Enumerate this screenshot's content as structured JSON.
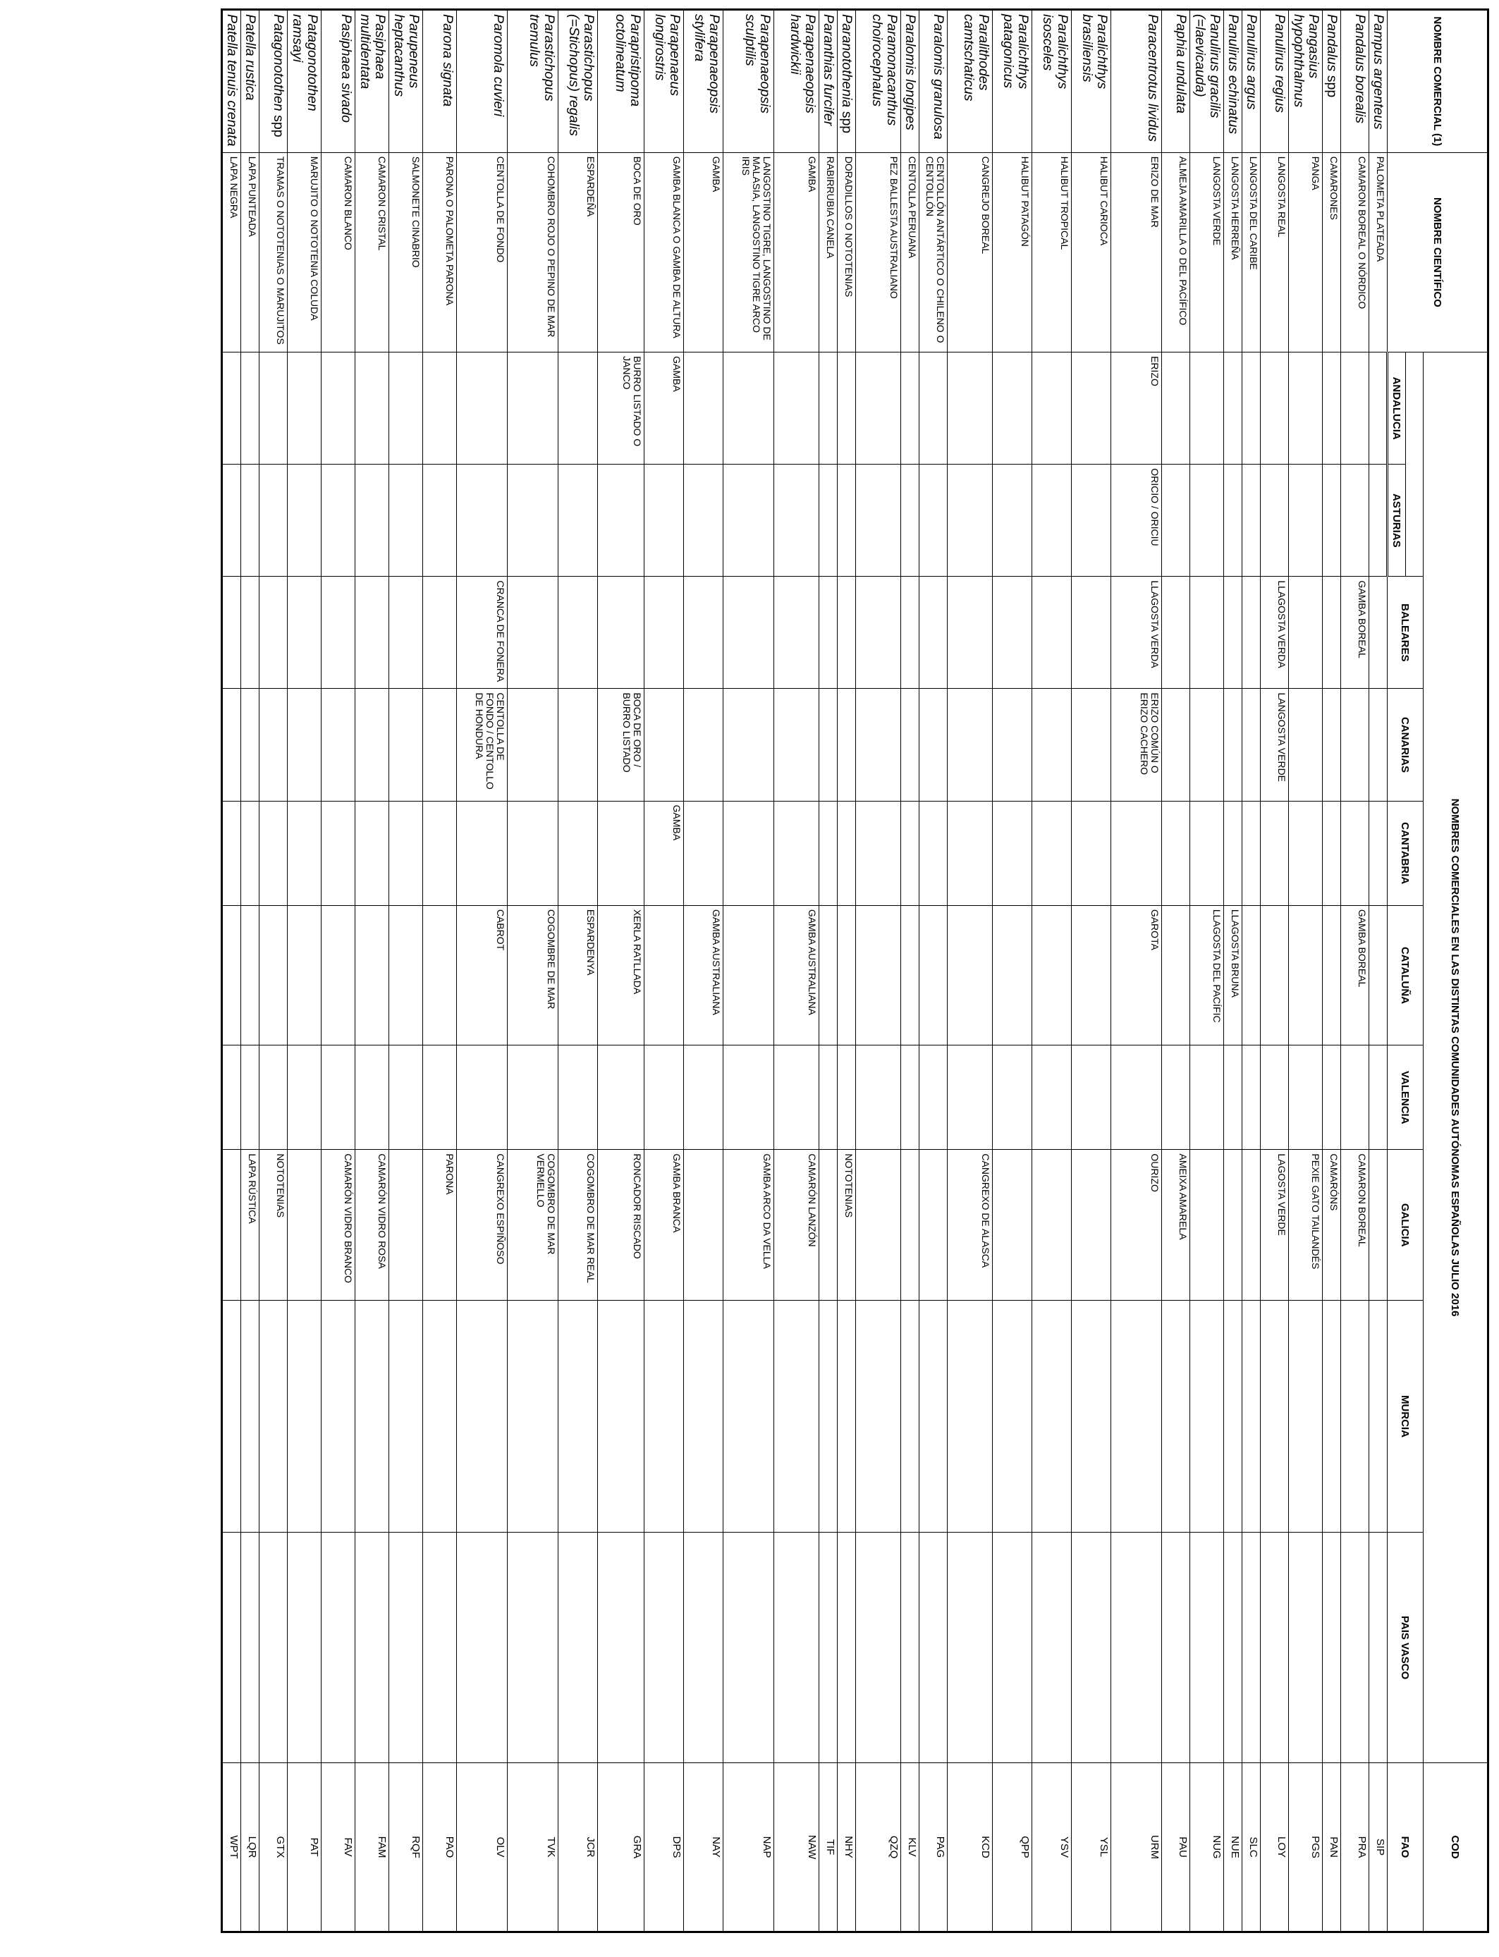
{
  "headers": {
    "nombre_comercial": "NOMBRE COMERCIAL (1)",
    "nombre_cientifico": "NOMBRE CIENTÍFICO",
    "group_title": "NOMBRES COMERCIALES EN LAS DISTINTAS COMUNIDADES AUTÓNOMAS ESPAÑOLAS JULIO 2016",
    "cod": "COD",
    "fao": "FAO",
    "regions": [
      "ANDALUCIA",
      "ASTURIAS",
      "BALEARES",
      "CANARIAS",
      "CANTABRIA",
      "CATALUÑA",
      "VALENCIA",
      "GALICIA",
      "MURCIA",
      "PAIS VASCO"
    ]
  },
  "rows": [
    {
      "sci": "Pampus argenteus",
      "spp": "",
      "com": "PALOMETA PLATEADA",
      "reg": [
        "",
        "",
        "",
        "",
        "",
        "",
        "",
        "",
        "",
        ""
      ],
      "fao": "SIP"
    },
    {
      "sci": "Pandalus borealis",
      "spp": "",
      "com": "CAMARON BOREAL O NÓRDICO",
      "reg": [
        "",
        "",
        "GAMBA BOREAL",
        "",
        "",
        "GAMBA BOREAL",
        "",
        "CAMARON BOREAL",
        "",
        ""
      ],
      "fao": "PRA"
    },
    {
      "sci": "Pandalus",
      "spp": "spp",
      "com": "CAMARONES",
      "reg": [
        "",
        "",
        "",
        "",
        "",
        "",
        "",
        "CAMARÓNS",
        "",
        ""
      ],
      "fao": "PAN"
    },
    {
      "sci": "Pangasius hypophthalmus",
      "spp": "",
      "com": "PANGA",
      "reg": [
        "",
        "",
        "",
        "",
        "",
        "",
        "",
        "PEXIE GATO TAILANDÉS",
        "",
        ""
      ],
      "fao": "PGS"
    },
    {
      "sci": "Panulirus  regius",
      "spp": "",
      "com": "LANGOSTA REAL",
      "reg": [
        "",
        "",
        "LLAGOSTA VERDA",
        "LANGOSTA VERDE",
        "",
        "",
        "",
        "LAGOSTA VERDE",
        "",
        ""
      ],
      "fao": "LOY"
    },
    {
      "sci": "Panulirus argus",
      "spp": "",
      "com": "LANGOSTA DEL CARIBE",
      "reg": [
        "",
        "",
        "",
        "",
        "",
        "",
        "",
        "",
        "",
        ""
      ],
      "fao": "SLC"
    },
    {
      "sci": "Panulirus echinatus",
      "spp": "",
      "com": "LANGOSTA HERREÑA",
      "reg": [
        "",
        "",
        "",
        "",
        "",
        "LLAGOSTA BRUNA",
        "",
        "",
        "",
        ""
      ],
      "fao": "NUE"
    },
    {
      "sci": "Panulirus gracilis (=laevicauda)",
      "spp": "",
      "com": "LANGOSTA VERDE",
      "reg": [
        "",
        "",
        "",
        "",
        "",
        "LLAGOSTA DEL PACÍFIC",
        "",
        "",
        "",
        ""
      ],
      "fao": "NUG"
    },
    {
      "sci": "Paphia undulata",
      "spp": "",
      "com": "ALMEJA AMARILLA O DEL PACÍFICO",
      "reg": [
        "",
        "",
        "",
        "",
        "",
        "",
        "",
        "AMEIXA AMARELA",
        "",
        ""
      ],
      "fao": "PAU"
    },
    {
      "sci": "Paracentrotus lividus",
      "spp": "",
      "com": "ERIZO DE MAR",
      "reg": [
        "ERIZO",
        "ORICIO / ORICIU",
        "LLAGOSTA VERDA",
        "ERIZO COMÚN O ERIZO CACHERO",
        "",
        "GAROTA",
        "",
        "OURIZO",
        "",
        ""
      ],
      "fao": "URM"
    },
    {
      "sci": "Paralichthys brasiliensis",
      "spp": "",
      "com": "HALIBUT CARIOCA",
      "reg": [
        "",
        "",
        "",
        "",
        "",
        "",
        "",
        "",
        "",
        ""
      ],
      "fao": "YSL"
    },
    {
      "sci": "Paralichthys isosceles",
      "spp": "",
      "com": "HALIBUT TROPICAL",
      "reg": [
        "",
        "",
        "",
        "",
        "",
        "",
        "",
        "",
        "",
        ""
      ],
      "fao": "YSV"
    },
    {
      "sci": "Paralichthys patagonicus",
      "spp": "",
      "com": "HALIBUT PATAGÓN",
      "reg": [
        "",
        "",
        "",
        "",
        "",
        "",
        "",
        "",
        "",
        ""
      ],
      "fao": "QPP"
    },
    {
      "sci": "Paralithodes camtschaticus",
      "spp": "",
      "com": "CANGREJO BOREAL",
      "reg": [
        "",
        "",
        "",
        "",
        "",
        "",
        "",
        "CANGREXO DE ALASCA",
        "",
        ""
      ],
      "fao": "KCD"
    },
    {
      "sci": "Paralomis granulosa",
      "spp": "",
      "com": "CENTOLLÓN ANTÁRTICO O CHILENO O CENTOLLÓN",
      "reg": [
        "",
        "",
        "",
        "",
        "",
        "",
        "",
        "",
        "",
        ""
      ],
      "fao": "PAG"
    },
    {
      "sci": "Paralomis longipes",
      "spp": "",
      "com": "CENTOLLA PERUANA",
      "reg": [
        "",
        "",
        "",
        "",
        "",
        "",
        "",
        "",
        "",
        ""
      ],
      "fao": "KLV"
    },
    {
      "sci": "Paramonacanthus choirocephalus",
      "spp": "",
      "com": "PEZ BALLESTA AUSTRALIANO",
      "reg": [
        "",
        "",
        "",
        "",
        "",
        "",
        "",
        "",
        "",
        ""
      ],
      "fao": "QZQ"
    },
    {
      "sci": "Paranotothenia",
      "spp": "spp",
      "com": "DORADILLOS O NOTOTENIAS",
      "reg": [
        "",
        "",
        "",
        "",
        "",
        "",
        "",
        "NOTOTENIAS",
        "",
        ""
      ],
      "fao": "NHY"
    },
    {
      "sci": "Paranthias furcifer",
      "spp": "",
      "com": "RABIRRUBIA CANELA",
      "reg": [
        "",
        "",
        "",
        "",
        "",
        "",
        "",
        "",
        "",
        ""
      ],
      "fao": "TIF"
    },
    {
      "sci": "Parapenaeopsis hardwickii",
      "spp": "",
      "com": "GAMBA",
      "reg": [
        "",
        "",
        "",
        "",
        "",
        "GAMBA AUSTRALIANA",
        "",
        "CAMARÓN LANZÓN",
        "",
        ""
      ],
      "fao": "NAW"
    },
    {
      "sci": "Parapenaeopsis sculptilis",
      "spp": "",
      "com": "LANGOSTINO TIGRE, LANGOSTINO DE MALASIA, LANGOSTINO TIGRE ARCO IRIS",
      "reg": [
        "",
        "",
        "",
        "",
        "",
        "",
        "",
        "GAMBA ARCO DA VELLA",
        "",
        ""
      ],
      "fao": "NAP"
    },
    {
      "sci": "Parapenaeopsis stylifera",
      "spp": "",
      "com": "GAMBA",
      "reg": [
        "",
        "",
        "",
        "",
        "",
        "GAMBA AUSTRALIANA",
        "",
        "",
        "",
        ""
      ],
      "fao": "NAY"
    },
    {
      "sci": "Parapenaeus longirostris",
      "spp": "",
      "com": "GAMBA BLANCA O GAMBA DE ALTURA",
      "reg": [
        "GAMBA",
        "",
        "",
        "",
        "GAMBA",
        "",
        "",
        "GAMBA BRANCA",
        "",
        ""
      ],
      "fao": "DPS"
    },
    {
      "sci": "Parapristipoma octolineatum",
      "spp": "",
      "com": "BOCA DE ORO",
      "reg": [
        "BURRO LISTADO O JANCO",
        "",
        "",
        "BOCA DE ORO / BURRO LISTADO",
        "",
        "XERLA RATLLADA",
        "",
        "RONCADOR RISCADO",
        "",
        ""
      ],
      "fao": "GRA"
    },
    {
      "sci": "Parastichopus (=Stichopus) regalis",
      "spp": "",
      "com": "ESPARDEÑA",
      "reg": [
        "",
        "",
        "",
        "",
        "",
        "ESPARDENYA",
        "",
        "COGOMBRO DE MAR REAL",
        "",
        ""
      ],
      "fao": "JCR"
    },
    {
      "sci": "Parastichopus tremulus",
      "spp": "",
      "com": "COHOMBRO ROJO O PEPINO DE MAR",
      "reg": [
        "",
        "",
        "",
        "",
        "",
        "COGOMBRE DE MAR",
        "",
        "COGOMBRO DE MAR VERMELLO",
        "",
        ""
      ],
      "fao": "TVK"
    },
    {
      "sci": "Paromola cuvieri",
      "spp": "",
      "com": "CENTOLLA DE FONDO",
      "reg": [
        "",
        "",
        "CRANCA DE FONERA",
        "CENTOLLA DE FONDO / CENTOLLO DE HONDURA",
        "",
        "CABROT",
        "",
        "CANGREXO ESPIÑOSO",
        "",
        ""
      ],
      "fao": "OLV"
    },
    {
      "sci": "Parona signata",
      "spp": "",
      "com": "PARONA O PALOMETA PARONA",
      "reg": [
        "",
        "",
        "",
        "",
        "",
        "",
        "",
        "PARONA",
        "",
        ""
      ],
      "fao": "PAO"
    },
    {
      "sci": "Parupeneus heptacanthus",
      "spp": "",
      "com": "SALMONETE CINABRIO",
      "reg": [
        "",
        "",
        "",
        "",
        "",
        "",
        "",
        "",
        "",
        ""
      ],
      "fao": "RQF"
    },
    {
      "sci": "Pasiphaea multidentata",
      "spp": "",
      "com": "CAMARON CRISTAL",
      "reg": [
        "",
        "",
        "",
        "",
        "",
        "",
        "",
        "CAMARÓN VIDRO ROSA",
        "",
        ""
      ],
      "fao": "FAM"
    },
    {
      "sci": "Pasiphaea sivado",
      "spp": "",
      "com": "CAMARON BLANCO",
      "reg": [
        "",
        "",
        "",
        "",
        "",
        "",
        "",
        "CAMARÓN VIDRO BRANCO",
        "",
        ""
      ],
      "fao": "FAV"
    },
    {
      "sci": "Patagonotothen ramsayi",
      "spp": "",
      "com": "MARUJITO O NOTOTENIA COLUDA",
      "reg": [
        "",
        "",
        "",
        "",
        "",
        "",
        "",
        "",
        "",
        ""
      ],
      "fao": "PAT"
    },
    {
      "sci": "Patagonotothen",
      "spp": "spp",
      "com": "TRAMAS O NOTOTENIAS O MARUJITOS",
      "reg": [
        "",
        "",
        "",
        "",
        "",
        "",
        "",
        "NOTOTENIAS",
        "",
        ""
      ],
      "fao": "GTX"
    },
    {
      "sci": "Patella rustica",
      "spp": "",
      "com": "LAPA PUNTEADA",
      "reg": [
        "",
        "",
        "",
        "",
        "",
        "",
        "",
        "LAPA RÚSTICA",
        "",
        ""
      ],
      "fao": "LQR"
    },
    {
      "sci": "Patella tenuis crenata",
      "spp": "",
      "com": "LAPA NEGRA",
      "reg": [
        "",
        "",
        "",
        "",
        "",
        "",
        "",
        "",
        "",
        ""
      ],
      "fao": "WPT"
    }
  ]
}
